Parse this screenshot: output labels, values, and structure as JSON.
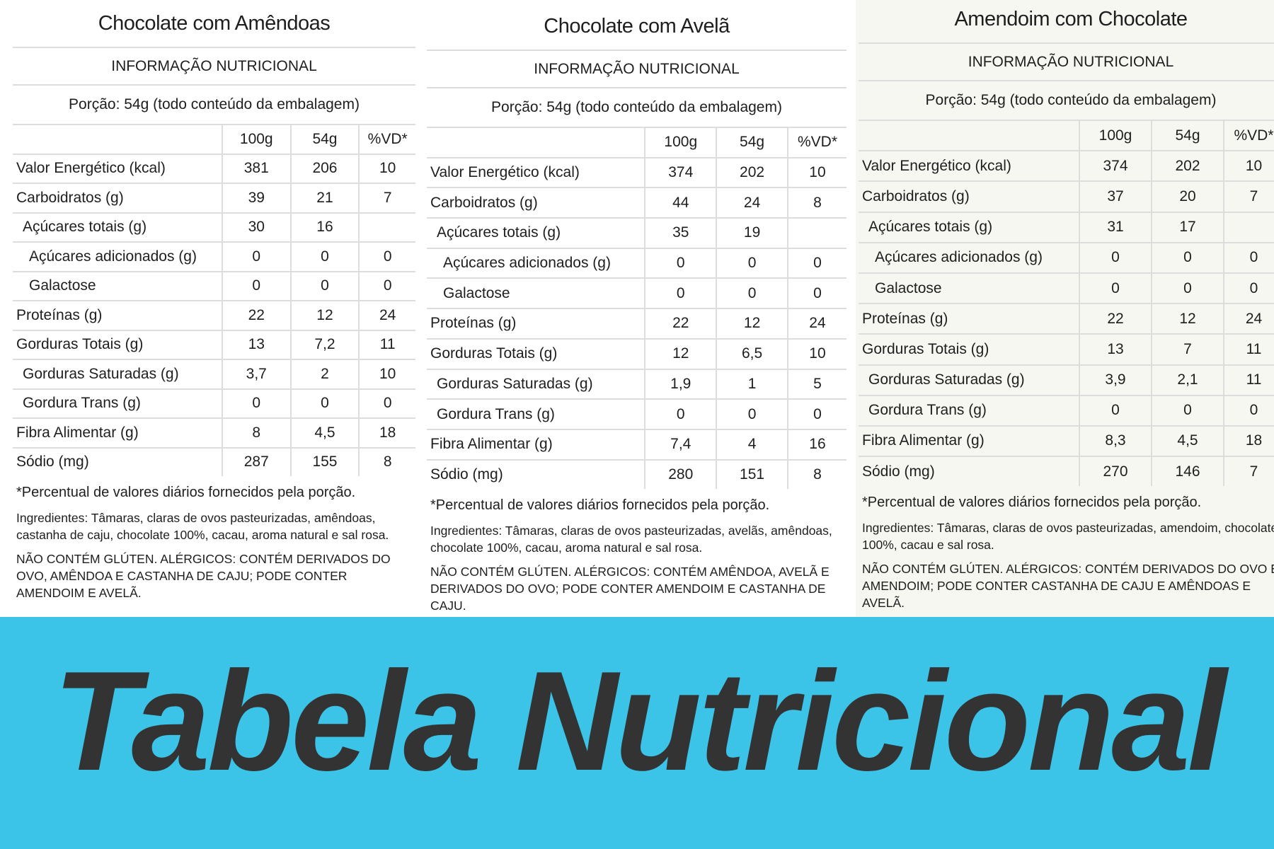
{
  "panels": [
    {
      "title": "Chocolate com Amêndoas",
      "header": "INFORMAÇÃO NUTRICIONAL",
      "portion": "Porção: 54g (todo conteúdo da embalagem)",
      "columns": [
        "100g",
        "54g",
        "%VD*"
      ],
      "rows": [
        [
          "Valor Energético (kcal)",
          381,
          206,
          10
        ],
        [
          "Carboidratos (g)",
          39,
          21,
          7
        ],
        [
          "Açúcares totais (g)",
          30,
          16,
          null
        ],
        [
          "Açúcares adicionados (g)",
          0,
          0,
          0
        ],
        [
          "Galactose",
          0,
          0,
          0
        ],
        [
          "Proteínas (g)",
          22,
          12,
          24
        ],
        [
          "Gorduras Totais (g)",
          13,
          "7,2",
          11
        ],
        [
          "Gorduras Saturadas (g)",
          "3,7",
          2,
          10
        ],
        [
          "Gordura Trans (g)",
          0,
          0,
          0
        ],
        [
          "Fibra Alimentar (g)",
          8,
          "4,5",
          18
        ],
        [
          "Sódio (mg)",
          287,
          155,
          8
        ]
      ],
      "footnote": "*Percentual de valores diários fornecidos pela porção.",
      "ingredients": "Ingredientes: Tâmaras, claras de ovos pasteurizadas, amêndoas, castanha de caju, chocolate 100%, cacau, aroma natural e sal rosa.",
      "allergens": "NÃO CONTÉM GLÚTEN. ALÉRGICOS: CONTÉM DERIVADOS DO OVO, AMÊNDOA E CASTANHA DE CAJU; PODE CONTER AMENDOIM E AVELÃ."
    },
    {
      "title": "Chocolate com Avelã",
      "header": "INFORMAÇÃO NUTRICIONAL",
      "portion": "Porção: 54g (todo conteúdo da embalagem)",
      "columns": [
        "100g",
        "54g",
        "%VD*"
      ],
      "rows": [
        [
          "Valor Energético (kcal)",
          374,
          202,
          10
        ],
        [
          "Carboidratos (g)",
          44,
          24,
          8
        ],
        [
          "Açúcares totais (g)",
          35,
          19,
          null
        ],
        [
          "Açúcares adicionados (g)",
          0,
          0,
          0
        ],
        [
          "Galactose",
          0,
          0,
          0
        ],
        [
          "Proteínas (g)",
          22,
          12,
          24
        ],
        [
          "Gorduras Totais (g)",
          12,
          "6,5",
          10
        ],
        [
          "Gorduras Saturadas (g)",
          "1,9",
          1,
          5
        ],
        [
          "Gordura Trans (g)",
          0,
          0,
          0
        ],
        [
          "Fibra Alimentar (g)",
          "7,4",
          4,
          16
        ],
        [
          "Sódio (mg)",
          280,
          151,
          8
        ]
      ],
      "footnote": "*Percentual de valores diários fornecidos pela porção.",
      "ingredients": "Ingredientes: Tâmaras, claras de ovos pasteurizadas, avelãs, amêndoas, chocolate 100%, cacau, aroma natural e sal rosa.",
      "allergens": "NÃO CONTÉM GLÚTEN. ALÉRGICOS: CONTÉM AMÊNDOA, AVELÃ E DERIVADOS DO OVO; PODE CONTER AMENDOIM E CASTANHA DE CAJU."
    },
    {
      "title": "Amendoim com Chocolate",
      "header": "INFORMAÇÃO NUTRICIONAL",
      "portion": "Porção: 54g (todo conteúdo da embalagem)",
      "columns": [
        "100g",
        "54g",
        "%VD*"
      ],
      "rows": [
        [
          "Valor Energético (kcal)",
          374,
          202,
          10
        ],
        [
          "Carboidratos (g)",
          37,
          20,
          7
        ],
        [
          "Açúcares totais (g)",
          31,
          17,
          null
        ],
        [
          "Açúcares adicionados (g)",
          0,
          0,
          0
        ],
        [
          "Galactose",
          0,
          0,
          0
        ],
        [
          "Proteínas (g)",
          22,
          12,
          24
        ],
        [
          "Gorduras Totais (g)",
          13,
          7,
          11
        ],
        [
          "Gorduras Saturadas (g)",
          "3,9",
          "2,1",
          11
        ],
        [
          "Gordura Trans (g)",
          0,
          0,
          0
        ],
        [
          "Fibra Alimentar (g)",
          "8,3",
          "4,5",
          18
        ],
        [
          "Sódio (mg)",
          270,
          146,
          7
        ]
      ],
      "footnote": "*Percentual de valores diários fornecidos pela porção.",
      "ingredients": "Ingredientes: Tâmaras, claras de ovos pasteurizadas, amendoim, chocolate 100%, cacau e sal rosa.",
      "allergens": "NÃO CONTÉM GLÚTEN. ALÉRGICOS: CONTÉM DERIVADOS DO OVO E AMENDOIM; PODE CONTER CASTANHA DE CAJU E AMÊNDOAS E AVELÃ."
    }
  ],
  "banner": {
    "title": "Tabela Nutricional"
  }
}
